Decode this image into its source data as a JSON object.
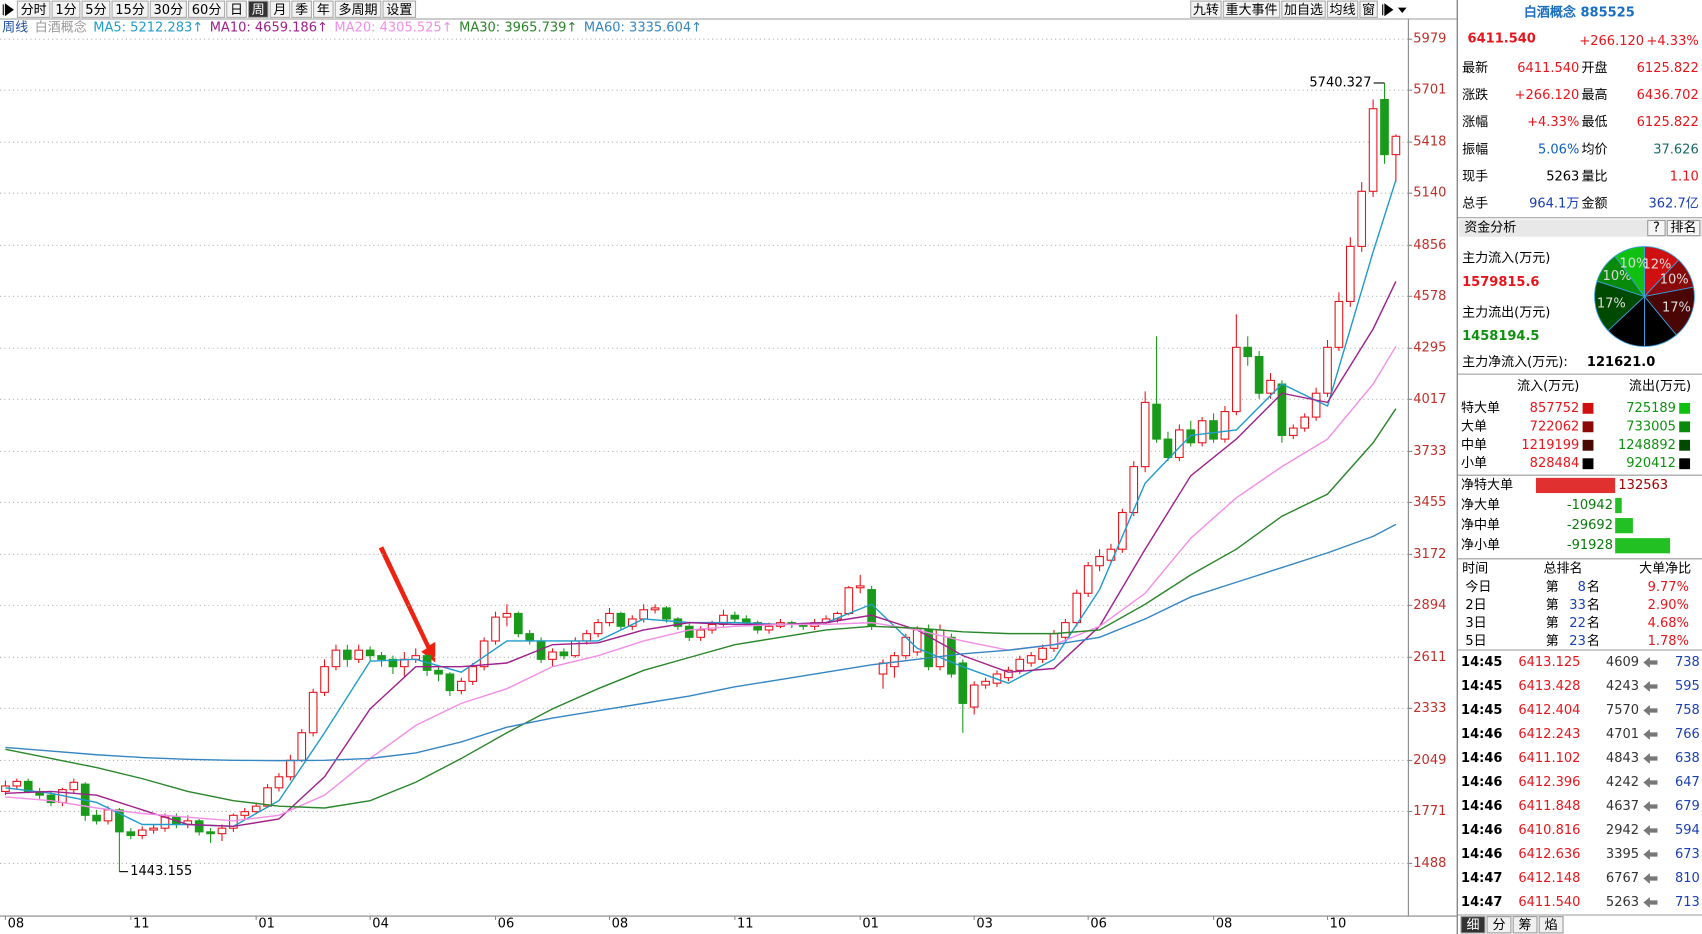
{
  "toolbar": {
    "left": [
      "分时",
      "1分",
      "5分",
      "15分",
      "30分",
      "60分",
      "日",
      "周",
      "月",
      "季",
      "年",
      "多周期",
      "设置"
    ],
    "selected": 7,
    "right": [
      "九转",
      "重大事件",
      "加自选",
      "均线",
      "窗"
    ]
  },
  "legend": {
    "period": "周线",
    "name": "白酒概念"
  },
  "chart_data": {
    "type": "candlestick",
    "ylim": [
      1204,
      6086
    ],
    "yticks": [
      1488,
      1771,
      2049,
      2333,
      2611,
      2894,
      3172,
      3455,
      3733,
      4017,
      4295,
      4578,
      4856,
      5140,
      5418,
      5701,
      5979
    ],
    "grid": true,
    "up_color": "#e8141b",
    "down_color": "#1a9a1a",
    "categories": [
      "08",
      null,
      null,
      null,
      null,
      null,
      null,
      null,
      null,
      null,
      null,
      "11",
      null,
      null,
      null,
      null,
      null,
      null,
      null,
      null,
      null,
      null,
      "01",
      null,
      null,
      null,
      null,
      null,
      null,
      null,
      null,
      null,
      "04",
      null,
      null,
      null,
      null,
      null,
      null,
      null,
      null,
      null,
      null,
      "06",
      null,
      null,
      null,
      null,
      null,
      null,
      null,
      null,
      null,
      "08",
      null,
      null,
      null,
      null,
      null,
      null,
      null,
      null,
      null,
      null,
      "11",
      null,
      null,
      null,
      null,
      null,
      null,
      null,
      null,
      null,
      null,
      "01",
      null,
      null,
      null,
      null,
      null,
      null,
      null,
      null,
      null,
      "03",
      null,
      null,
      null,
      null,
      null,
      null,
      null,
      null,
      null,
      "06",
      null,
      null,
      null,
      null,
      null,
      null,
      null,
      null,
      null,
      null,
      "08",
      null,
      null,
      null,
      null,
      null,
      null,
      null,
      null,
      null,
      "10",
      null,
      null,
      null,
      null,
      null,
      null
    ],
    "candles": [
      [
        1880,
        1940,
        1860,
        1910
      ],
      [
        1910,
        1950,
        1890,
        1935
      ],
      [
        1935,
        1950,
        1870,
        1880
      ],
      [
        1880,
        1900,
        1840,
        1860
      ],
      [
        1860,
        1880,
        1800,
        1820
      ],
      [
        1820,
        1900,
        1800,
        1890
      ],
      [
        1890,
        1950,
        1870,
        1930
      ],
      [
        1920,
        1930,
        1720,
        1750
      ],
      [
        1750,
        1780,
        1700,
        1720
      ],
      [
        1720,
        1800,
        1700,
        1780
      ],
      [
        1780,
        1790,
        1443.155,
        1660
      ],
      [
        1660,
        1680,
        1620,
        1640
      ],
      [
        1640,
        1690,
        1620,
        1670
      ],
      [
        1670,
        1700,
        1650,
        1680
      ],
      [
        1680,
        1760,
        1660,
        1740
      ],
      [
        1740,
        1760,
        1680,
        1700
      ],
      [
        1700,
        1750,
        1680,
        1720
      ],
      [
        1720,
        1730,
        1640,
        1660
      ],
      [
        1660,
        1680,
        1600,
        1650
      ],
      [
        1650,
        1700,
        1610,
        1680
      ],
      [
        1680,
        1760,
        1660,
        1750
      ],
      [
        1750,
        1790,
        1730,
        1770
      ],
      [
        1770,
        1820,
        1760,
        1800
      ],
      [
        1800,
        1920,
        1790,
        1900
      ],
      [
        1900,
        1980,
        1880,
        1960
      ],
      [
        1960,
        2080,
        1940,
        2050
      ],
      [
        2050,
        2220,
        2040,
        2200
      ],
      [
        2200,
        2440,
        2180,
        2420
      ],
      [
        2420,
        2600,
        2400,
        2560
      ],
      [
        2560,
        2680,
        2540,
        2650
      ],
      [
        2650,
        2680,
        2560,
        2600
      ],
      [
        2600,
        2680,
        2580,
        2650
      ],
      [
        2650,
        2670,
        2590,
        2620
      ],
      [
        2620,
        2640,
        2560,
        2600
      ],
      [
        2600,
        2620,
        2520,
        2560
      ],
      [
        2560,
        2640,
        2500,
        2600
      ],
      [
        2600,
        2660,
        2580,
        2620
      ],
      [
        2620,
        2630,
        2510,
        2540
      ],
      [
        2540,
        2560,
        2480,
        2520
      ],
      [
        2520,
        2530,
        2400,
        2430
      ],
      [
        2430,
        2500,
        2410,
        2480
      ],
      [
        2480,
        2580,
        2460,
        2560
      ],
      [
        2560,
        2720,
        2540,
        2700
      ],
      [
        2700,
        2860,
        2680,
        2830
      ],
      [
        2830,
        2900,
        2780,
        2850
      ],
      [
        2850,
        2860,
        2720,
        2740
      ],
      [
        2740,
        2760,
        2680,
        2700
      ],
      [
        2700,
        2720,
        2580,
        2600
      ],
      [
        2600,
        2660,
        2560,
        2640
      ],
      [
        2640,
        2660,
        2600,
        2620
      ],
      [
        2620,
        2720,
        2610,
        2700
      ],
      [
        2700,
        2760,
        2680,
        2740
      ],
      [
        2740,
        2820,
        2720,
        2800
      ],
      [
        2800,
        2880,
        2780,
        2850
      ],
      [
        2850,
        2860,
        2760,
        2780
      ],
      [
        2780,
        2840,
        2760,
        2820
      ],
      [
        2820,
        2900,
        2800,
        2870
      ],
      [
        2870,
        2900,
        2850,
        2880
      ],
      [
        2880,
        2890,
        2800,
        2820
      ],
      [
        2820,
        2830,
        2760,
        2780
      ],
      [
        2780,
        2800,
        2700,
        2720
      ],
      [
        2720,
        2780,
        2700,
        2760
      ],
      [
        2760,
        2810,
        2740,
        2790
      ],
      [
        2790,
        2870,
        2780,
        2840
      ],
      [
        2840,
        2860,
        2800,
        2820
      ],
      [
        2820,
        2840,
        2780,
        2800
      ],
      [
        2800,
        2810,
        2740,
        2760
      ],
      [
        2760,
        2800,
        2740,
        2780
      ],
      [
        2780,
        2820,
        2770,
        2800
      ],
      [
        2800,
        2810,
        2770,
        2790
      ],
      [
        2790,
        2800,
        2760,
        2780
      ],
      [
        2780,
        2820,
        2760,
        2800
      ],
      [
        2800,
        2840,
        2790,
        2820
      ],
      [
        2820,
        2860,
        2800,
        2850
      ],
      [
        2850,
        3000,
        2840,
        2990
      ],
      [
        2990,
        3060,
        2960,
        3000
      ],
      [
        2980,
        3000,
        2760,
        2780
      ],
      [
        2520,
        2600,
        2440,
        2580
      ],
      [
        2560,
        2640,
        2500,
        2620
      ],
      [
        2620,
        2740,
        2600,
        2720
      ],
      [
        2640,
        2780,
        2620,
        2760
      ],
      [
        2760,
        2790,
        2540,
        2560
      ],
      [
        2560,
        2790,
        2540,
        2760
      ],
      [
        2720,
        2740,
        2500,
        2520
      ],
      [
        2580,
        2600,
        2200,
        2360
      ],
      [
        2340,
        2480,
        2300,
        2460
      ],
      [
        2460,
        2500,
        2440,
        2480
      ],
      [
        2470,
        2540,
        2450,
        2520
      ],
      [
        2500,
        2560,
        2480,
        2540
      ],
      [
        2540,
        2620,
        2520,
        2600
      ],
      [
        2580,
        2640,
        2560,
        2620
      ],
      [
        2600,
        2680,
        2580,
        2660
      ],
      [
        2660,
        2760,
        2640,
        2740
      ],
      [
        2720,
        2820,
        2700,
        2800
      ],
      [
        2800,
        2980,
        2780,
        2960
      ],
      [
        2960,
        3130,
        2940,
        3110
      ],
      [
        3110,
        3200,
        3080,
        3160
      ],
      [
        3140,
        3230,
        3120,
        3200
      ],
      [
        3200,
        3420,
        3180,
        3400
      ],
      [
        3400,
        3680,
        3380,
        3650
      ],
      [
        3650,
        4060,
        3620,
        4000
      ],
      [
        3990,
        4360,
        3780,
        3800
      ],
      [
        3800,
        3840,
        3680,
        3700
      ],
      [
        3700,
        3880,
        3680,
        3850
      ],
      [
        3850,
        3900,
        3760,
        3780
      ],
      [
        3780,
        3920,
        3760,
        3900
      ],
      [
        3900,
        3940,
        3780,
        3800
      ],
      [
        3800,
        3980,
        3780,
        3950
      ],
      [
        3950,
        4480,
        3930,
        4300
      ],
      [
        4300,
        4360,
        4200,
        4250
      ],
      [
        4250,
        4280,
        4020,
        4050
      ],
      [
        4050,
        4160,
        4020,
        4120
      ],
      [
        4100,
        4120,
        3780,
        3820
      ],
      [
        3820,
        3880,
        3800,
        3860
      ],
      [
        3860,
        3940,
        3840,
        3920
      ],
      [
        3920,
        4080,
        3900,
        4050
      ],
      [
        4050,
        4340,
        4030,
        4300
      ],
      [
        4300,
        4600,
        4280,
        4550
      ],
      [
        4550,
        4900,
        4520,
        4850
      ],
      [
        4850,
        5200,
        4820,
        5150
      ],
      [
        5150,
        5650,
        5120,
        5600
      ],
      [
        5650,
        5740.327,
        5300,
        5350
      ],
      [
        5350,
        5460,
        5200,
        5450
      ]
    ],
    "x": [
      0,
      4,
      8,
      12,
      16,
      20,
      24,
      28,
      32,
      36,
      40,
      44,
      48,
      52,
      56,
      60,
      64,
      68,
      72,
      76,
      80,
      84,
      88,
      92,
      96,
      100,
      104,
      108,
      112,
      116,
      120,
      122
    ],
    "series": [
      {
        "name": "MA5: 5212.283↑",
        "color": "#1f9ccc",
        "values": [
          1900,
          1870,
          1820,
          1700,
          1700,
          1690,
          1830,
          2200,
          2590,
          2600,
          2530,
          2700,
          2700,
          2700,
          2820,
          2800,
          2800,
          2790,
          2800,
          2900,
          2660,
          2560,
          2470,
          2600,
          2980,
          3560,
          3820,
          3850,
          4100,
          3980,
          4820,
          5212.283
        ]
      },
      {
        "name": "MA10: 4659.186↑",
        "color": "#a0208c",
        "values": [
          1870,
          1880,
          1860,
          1780,
          1700,
          1690,
          1730,
          1960,
          2330,
          2560,
          2560,
          2580,
          2680,
          2690,
          2760,
          2800,
          2790,
          2790,
          2800,
          2840,
          2760,
          2620,
          2530,
          2550,
          2780,
          3200,
          3600,
          3800,
          4050,
          4000,
          4400,
          4659.186
        ]
      },
      {
        "name": "MA20: 4305.525↑",
        "color": "#f28ee6",
        "values": [
          1850,
          1830,
          1790,
          1760,
          1740,
          1720,
          1750,
          1860,
          2060,
          2240,
          2360,
          2440,
          2560,
          2620,
          2700,
          2760,
          2780,
          2790,
          2790,
          2800,
          2760,
          2700,
          2650,
          2680,
          2780,
          2960,
          3260,
          3480,
          3650,
          3800,
          4100,
          4305.525
        ]
      },
      {
        "name": "MA30: 3965.739↑",
        "color": "#2a862a",
        "values": [
          2110,
          2060,
          2010,
          1950,
          1880,
          1830,
          1800,
          1790,
          1830,
          1930,
          2060,
          2200,
          2330,
          2440,
          2540,
          2610,
          2680,
          2720,
          2760,
          2780,
          2770,
          2750,
          2740,
          2740,
          2760,
          2900,
          3060,
          3200,
          3380,
          3500,
          3780,
          3965.739
        ]
      },
      {
        "name": "MA60: 3335.604↑",
        "color": "#3686c2",
        "values": [
          2120,
          2100,
          2080,
          2065,
          2055,
          2050,
          2048,
          2050,
          2060,
          2090,
          2150,
          2230,
          2280,
          2320,
          2360,
          2400,
          2450,
          2490,
          2530,
          2570,
          2600,
          2630,
          2650,
          2680,
          2720,
          2820,
          2940,
          3020,
          3100,
          3180,
          3270,
          3335.604
        ]
      }
    ]
  },
  "panel": {
    "quote": {
      "title": "白酒概念 885525",
      "price": "6411.540",
      "change": "+266.120",
      "pct": "+4.33%",
      "rows": [
        [
          "最新",
          "6411.540",
          "开盘",
          "6125.822"
        ],
        [
          "涨跌",
          "+266.120",
          "最高",
          "6436.702"
        ],
        [
          "涨幅",
          "+4.33%",
          "最低",
          "6125.822"
        ],
        [
          "振幅",
          "5.06%",
          "均价",
          "37.626"
        ],
        [
          "现手",
          "5263",
          "量比",
          "1.10"
        ],
        [
          "总手",
          "964.1万",
          "金额",
          "362.7亿"
        ]
      ]
    },
    "fund": {
      "title": "资金分析",
      "help": "?",
      "rank": "排名",
      "inflow_label": "主力流入(万元)",
      "inflow": "1579815.6",
      "outflow_label": "主力流出(万元)",
      "outflow": "1458194.5",
      "net_label": "主力净流入(万元):",
      "net": "121621.0"
    },
    "pie": {
      "type": "pie",
      "values": [
        12,
        10,
        17,
        11,
        13,
        17,
        10,
        10
      ],
      "value_labels": [
        "12%",
        "10%",
        "17%",
        null,
        null,
        "17%",
        "10%",
        "10%"
      ],
      "colors": [
        "#d01010",
        "#8a0a0a",
        "#4a0505",
        "#000000",
        "#000000",
        "#004a00",
        "#0a8a0a",
        "#10c010"
      ]
    },
    "flow": {
      "headers": [
        "流入(万元)",
        "流出(万元)"
      ],
      "rows": [
        {
          "label": "特大单",
          "in": 857752,
          "out": 725189
        },
        {
          "label": "大单",
          "in": 722062,
          "out": 733005
        },
        {
          "label": "中单",
          "in": 1219199,
          "out": 1248892
        },
        {
          "label": "小单",
          "in": 828484,
          "out": 920412
        }
      ]
    },
    "net": [
      {
        "label": "净特大单",
        "value": 132563
      },
      {
        "label": "净大单",
        "value": -10942
      },
      {
        "label": "净中单",
        "value": -29692
      },
      {
        "label": "净小单",
        "value": -91928
      }
    ],
    "rank_table": {
      "headers": [
        "时间",
        "总排名",
        "大单净比"
      ],
      "rows": [
        {
          "period": "今日",
          "pre": "第",
          "rank": 8,
          "post": "名",
          "ratio": "9.77%"
        },
        {
          "period": "2日",
          "pre": "第",
          "rank": 33,
          "post": "名",
          "ratio": "2.90%"
        },
        {
          "period": "3日",
          "pre": "第",
          "rank": 22,
          "post": "名",
          "ratio": "4.68%"
        },
        {
          "period": "5日",
          "pre": "第",
          "rank": 23,
          "post": "名",
          "ratio": "1.78%"
        }
      ]
    },
    "ticks": [
      [
        "14:45",
        "6413.125",
        "4609",
        "738"
      ],
      [
        "14:45",
        "6413.428",
        "4243",
        "595"
      ],
      [
        "14:45",
        "6412.404",
        "7570",
        "758"
      ],
      [
        "14:46",
        "6412.243",
        "4701",
        "766"
      ],
      [
        "14:46",
        "6411.102",
        "4843",
        "638"
      ],
      [
        "14:46",
        "6412.396",
        "4242",
        "647"
      ],
      [
        "14:46",
        "6411.848",
        "4637",
        "679"
      ],
      [
        "14:46",
        "6410.816",
        "2942",
        "594"
      ],
      [
        "14:46",
        "6412.636",
        "3395",
        "673"
      ],
      [
        "14:47",
        "6412.148",
        "6767",
        "810"
      ],
      [
        "14:47",
        "6411.540",
        "5263",
        "713"
      ]
    ],
    "tabs": [
      "细",
      "分",
      "筹",
      "焰"
    ]
  }
}
